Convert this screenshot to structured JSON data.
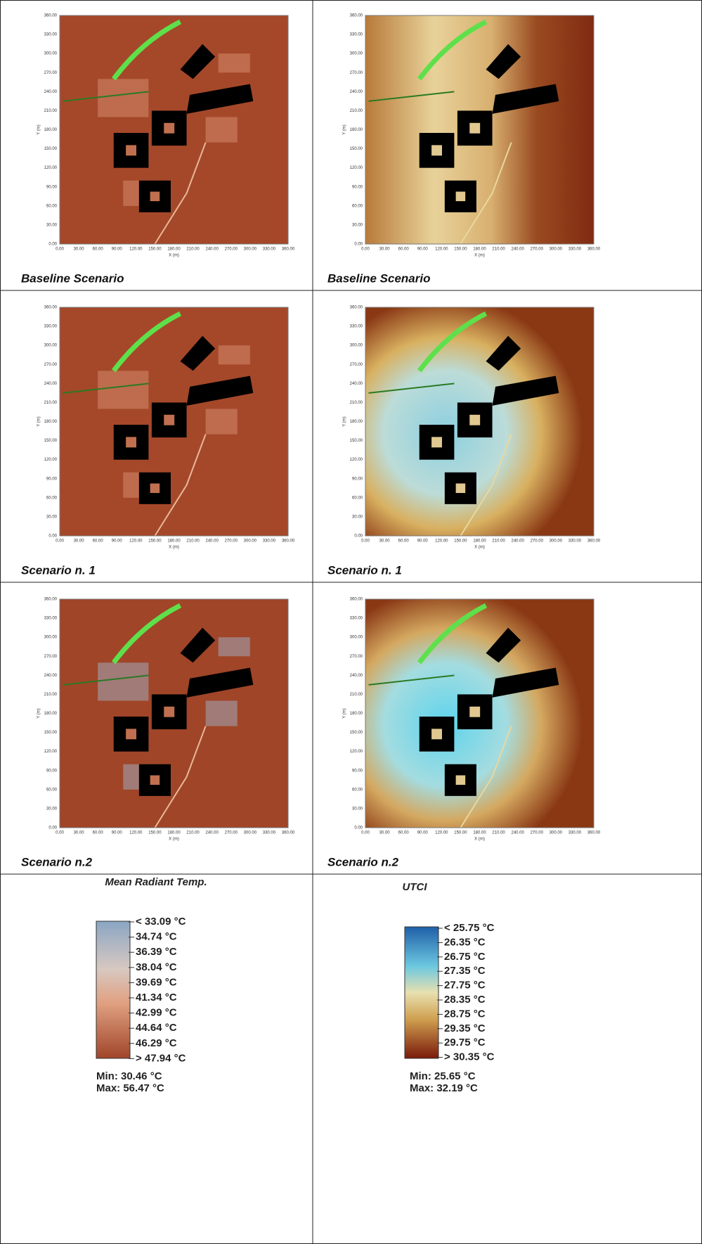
{
  "axes": {
    "xticks": [
      "0.00",
      "30.00",
      "60.00",
      "90.00",
      "120.00",
      "150.00",
      "180.00",
      "210.00",
      "240.00",
      "270.00",
      "300.00",
      "330.00",
      "360.00"
    ],
    "yticks": [
      "0.00",
      "30.00",
      "60.00",
      "90.00",
      "120.00",
      "150.00",
      "180.00",
      "210.00",
      "240.00",
      "270.00",
      "300.00",
      "330.00",
      "360.00"
    ],
    "xlabel": "X (m)",
    "ylabel": "Y (m)"
  },
  "panels": [
    {
      "caption": "Baseline Scenario"
    },
    {
      "caption": "Baseline Scenario"
    },
    {
      "caption": "Scenario n. 1"
    },
    {
      "caption": "Scenario n. 1"
    },
    {
      "caption": "Scenario n.2"
    },
    {
      "caption": "Scenario n.2"
    }
  ],
  "legends": [
    {
      "title": "Mean Radiant Temp.",
      "levels": [
        "< 33.09  °C",
        "34.74  °C",
        "36.39  °C",
        "38.04  °C",
        "39.69  °C",
        "41.34  °C",
        "42.99  °C",
        "44.64  °C",
        "46.29  °C",
        "> 47.94  °C"
      ],
      "min": "Min:  30.46  °C",
      "max": "Max:  56.47  °C"
    },
    {
      "title": "UTCI",
      "levels": [
        "< 25.75  °C",
        "26.35  °C",
        "26.75  °C",
        "27.35  °C",
        "27.75  °C",
        "28.35  °C",
        "28.75  °C",
        "29.35  °C",
        "29.75  °C",
        "> 30.35  °C"
      ],
      "min": "Min:  25.65  °C",
      "max": "Max:  32.19  °C"
    }
  ]
}
